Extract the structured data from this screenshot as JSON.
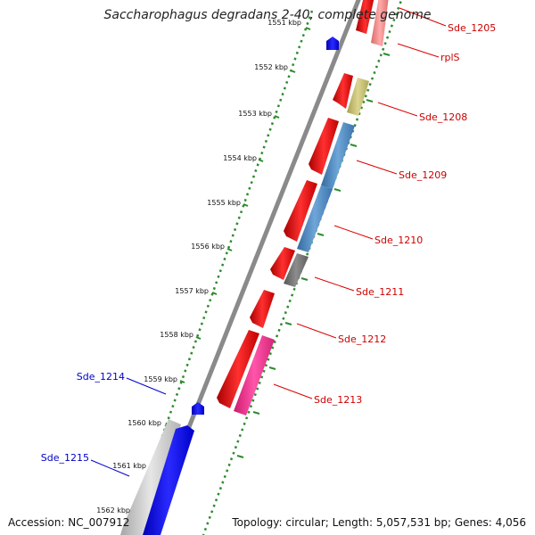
{
  "title": "Saccharophagus degradans 2-40, complete genome",
  "footer": {
    "accession": "Accession: NC_007912",
    "summary": "Topology: circular; Length: 5,057,531 bp; Genes: 4,056"
  },
  "colors": {
    "backbone": "#8a8a8a",
    "tick": "#2e8b2e",
    "label_red": "#cc0000",
    "label_blue": "#0000cc",
    "blue_gene": "#0000ee",
    "red_gene": "#ee1111",
    "pink_gene": "#ff3399",
    "steel_gene": "#4a84bf",
    "olive_gene": "#c8c070",
    "gray_gene": "#777777",
    "silver_gene": "#c6c6c6",
    "light_red_gene": "#f08080"
  },
  "kbp_labels": [
    {
      "name": "1551-kbp",
      "text": "1551 kbp"
    },
    {
      "name": "1552-kbp",
      "text": "1552 kbp"
    },
    {
      "name": "1553-kbp",
      "text": "1553 kbp"
    },
    {
      "name": "1554-kbp",
      "text": "1554 kbp"
    },
    {
      "name": "1555-kbp",
      "text": "1555 kbp"
    },
    {
      "name": "1556-kbp",
      "text": "1556 kbp"
    },
    {
      "name": "1557-kbp",
      "text": "1557 kbp"
    },
    {
      "name": "1558-kbp",
      "text": "1558 kbp"
    },
    {
      "name": "1559-kbp",
      "text": "1559 kbp"
    },
    {
      "name": "1560-kbp",
      "text": "1560 kbp"
    },
    {
      "name": "1561-kbp",
      "text": "1561 kbp"
    },
    {
      "name": "1562-kbp",
      "text": "1562 kbp"
    }
  ],
  "gene_labels": [
    {
      "name": "Sde-1205",
      "text": "Sde_1205",
      "color": "#cc0000"
    },
    {
      "name": "rplS",
      "text": "rplS",
      "color": "#cc0000"
    },
    {
      "name": "Sde-1208",
      "text": "Sde_1208",
      "color": "#cc0000"
    },
    {
      "name": "Sde-1209",
      "text": "Sde_1209",
      "color": "#cc0000"
    },
    {
      "name": "Sde-1210",
      "text": "Sde_1210",
      "color": "#cc0000"
    },
    {
      "name": "Sde-1211",
      "text": "Sde_1211",
      "color": "#cc0000"
    },
    {
      "name": "Sde-1212",
      "text": "Sde_1212",
      "color": "#cc0000"
    },
    {
      "name": "Sde-1213",
      "text": "Sde_1213",
      "color": "#cc0000"
    },
    {
      "name": "Sde-1214",
      "text": "Sde_1214",
      "color": "#0000cc"
    },
    {
      "name": "Sde-1215",
      "text": "Sde_1215",
      "color": "#0000cc"
    }
  ]
}
